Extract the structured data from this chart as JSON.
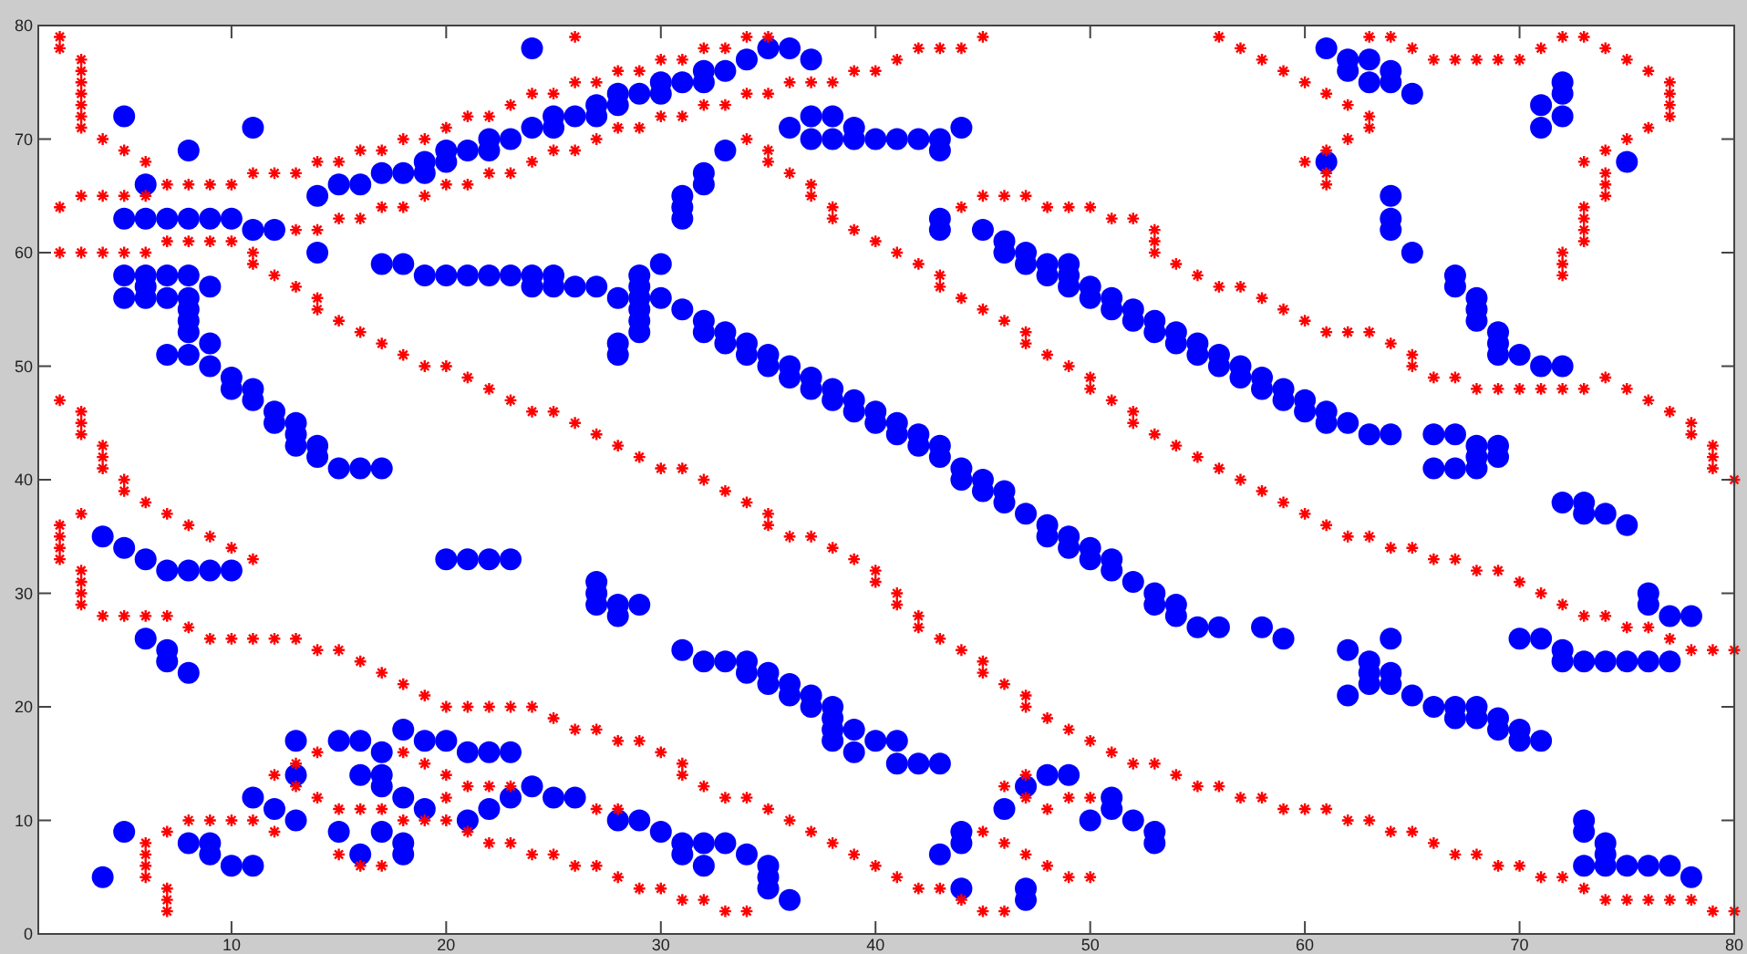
{
  "chart_data": {
    "type": "scatter",
    "xlim": [
      1,
      80
    ],
    "ylim": [
      0,
      80
    ],
    "xticks": [
      10,
      20,
      30,
      40,
      50,
      60,
      70,
      80
    ],
    "yticks": [
      0,
      10,
      20,
      30,
      40,
      50,
      60,
      70,
      80
    ],
    "grid": false,
    "series": [
      {
        "color": "#0000ff",
        "marker": "circle",
        "x": [
          4,
          4,
          5,
          5,
          5,
          5,
          5,
          5,
          6,
          6,
          6,
          6,
          6,
          6,
          6,
          7,
          7,
          7,
          7,
          7,
          7,
          7,
          8,
          8,
          8,
          8,
          8,
          8,
          8,
          8,
          8,
          8,
          8,
          9,
          9,
          9,
          9,
          9,
          9,
          9,
          10,
          10,
          10,
          10,
          10,
          11,
          11,
          11,
          11,
          11,
          11,
          12,
          12,
          12,
          12,
          13,
          13,
          13,
          13,
          13,
          13,
          14,
          14,
          14,
          14,
          15,
          15,
          15,
          15,
          16,
          16,
          16,
          16,
          16,
          17,
          17,
          17,
          17,
          17,
          17,
          17,
          18,
          18,
          18,
          18,
          18,
          18,
          19,
          19,
          19,
          19,
          19,
          20,
          20,
          20,
          20,
          20,
          21,
          21,
          21,
          21,
          21,
          22,
          22,
          22,
          22,
          22,
          22,
          23,
          23,
          23,
          23,
          23,
          24,
          24,
          24,
          24,
          24,
          25,
          25,
          25,
          25,
          25,
          26,
          26,
          26,
          27,
          27,
          27,
          27,
          27,
          27,
          28,
          28,
          28,
          28,
          28,
          28,
          28,
          28,
          29,
          29,
          29,
          29,
          29,
          29,
          29,
          29,
          29,
          30,
          30,
          30,
          30,
          30,
          31,
          31,
          31,
          31,
          31,
          31,
          31,
          31,
          32,
          32,
          32,
          32,
          32,
          32,
          32,
          32,
          32,
          33,
          33,
          33,
          33,
          33,
          33,
          34,
          34,
          34,
          34,
          34,
          34,
          35,
          35,
          35,
          35,
          35,
          35,
          35,
          35,
          36,
          36,
          36,
          36,
          36,
          36,
          36,
          37,
          37,
          37,
          37,
          37,
          37,
          37,
          38,
          38,
          38,
          38,
          38,
          38,
          38,
          38,
          39,
          39,
          39,
          39,
          39,
          39,
          40,
          40,
          40,
          40,
          41,
          41,
          41,
          41,
          41,
          42,
          42,
          42,
          42,
          43,
          43,
          43,
          43,
          43,
          43,
          43,
          43,
          44,
          44,
          44,
          44,
          44,
          44,
          45,
          45,
          45,
          46,
          46,
          46,
          46,
          46,
          47,
          47,
          47,
          47,
          47,
          47,
          48,
          48,
          48,
          48,
          48,
          49,
          49,
          49,
          49,
          49,
          49,
          50,
          50,
          50,
          50,
          50,
          51,
          51,
          51,
          51,
          51,
          51,
          52,
          52,
          52,
          52,
          53,
          53,
          53,
          53,
          53,
          53,
          54,
          54,
          54,
          54,
          55,
          55,
          55,
          56,
          56,
          56,
          57,
          57,
          58,
          58,
          58,
          59,
          59,
          59,
          60,
          60,
          61,
          61,
          61,
          61,
          62,
          62,
          62,
          62,
          62,
          63,
          63,
          63,
          63,
          63,
          63,
          64,
          64,
          64,
          64,
          64,
          64,
          64,
          64,
          64,
          65,
          65,
          65,
          66,
          66,
          66,
          67,
          67,
          67,
          67,
          67,
          67,
          68,
          68,
          68,
          68,
          68,
          68,
          68,
          68,
          69,
          69,
          69,
          69,
          69,
          69,
          69,
          70,
          70,
          70,
          70,
          71,
          71,
          71,
          71,
          71,
          72,
          72,
          72,
          72,
          72,
          72,
          72,
          73,
          73,
          73,
          73,
          73,
          73,
          74,
          74,
          74,
          74,
          74,
          75,
          75,
          75,
          75,
          76,
          76,
          76,
          76,
          77,
          77,
          77,
          78,
          78
        ],
        "values": [
          35,
          5,
          72,
          63,
          58,
          56,
          34,
          9,
          66,
          63,
          58,
          57,
          56,
          33,
          26,
          63,
          58,
          56,
          51,
          32,
          25,
          24,
          69,
          63,
          58,
          56,
          55,
          54,
          53,
          51,
          32,
          23,
          8,
          63,
          57,
          52,
          50,
          32,
          8,
          7,
          63,
          49,
          48,
          32,
          6,
          71,
          62,
          48,
          47,
          12,
          6,
          62,
          46,
          45,
          11,
          45,
          44,
          43,
          17,
          14,
          10,
          65,
          60,
          43,
          42,
          66,
          41,
          17,
          9,
          66,
          41,
          17,
          14,
          7,
          67,
          59,
          41,
          16,
          14,
          13,
          9,
          67,
          59,
          18,
          12,
          8,
          7,
          68,
          67,
          58,
          17,
          11,
          69,
          68,
          58,
          33,
          17,
          69,
          58,
          33,
          16,
          10,
          70,
          69,
          58,
          33,
          16,
          11,
          70,
          58,
          33,
          16,
          12,
          78,
          71,
          58,
          57,
          13,
          72,
          71,
          58,
          57,
          12,
          72,
          57,
          12,
          73,
          72,
          57,
          31,
          30,
          29,
          74,
          73,
          56,
          52,
          51,
          29,
          28,
          10,
          74,
          58,
          57,
          56,
          55,
          54,
          53,
          29,
          10,
          75,
          74,
          59,
          56,
          9,
          75,
          65,
          64,
          63,
          55,
          25,
          8,
          7,
          76,
          75,
          67,
          66,
          54,
          53,
          24,
          8,
          6,
          76,
          69,
          53,
          52,
          24,
          8,
          77,
          52,
          51,
          24,
          23,
          7,
          78,
          51,
          50,
          23,
          22,
          6,
          5,
          4,
          78,
          71,
          50,
          49,
          22,
          21,
          3,
          77,
          72,
          70,
          49,
          48,
          21,
          20,
          72,
          70,
          48,
          47,
          20,
          19,
          18,
          17,
          71,
          70,
          47,
          46,
          18,
          16,
          70,
          46,
          45,
          17,
          70,
          45,
          44,
          17,
          15,
          70,
          44,
          43,
          15,
          70,
          69,
          63,
          62,
          43,
          42,
          15,
          7,
          71,
          41,
          40,
          9,
          8,
          4,
          62,
          40,
          39,
          61,
          60,
          39,
          38,
          11,
          60,
          59,
          37,
          13,
          4,
          3,
          59,
          58,
          36,
          35,
          14,
          59,
          58,
          57,
          35,
          34,
          14,
          57,
          56,
          34,
          33,
          10,
          56,
          55,
          33,
          32,
          12,
          11,
          55,
          54,
          31,
          10,
          54,
          53,
          30,
          29,
          9,
          8,
          53,
          52,
          29,
          28,
          52,
          51,
          27,
          51,
          50,
          27,
          50,
          49,
          49,
          48,
          27,
          48,
          47,
          26,
          47,
          46,
          78,
          68,
          46,
          45,
          77,
          76,
          45,
          25,
          21,
          77,
          75,
          44,
          24,
          23,
          22,
          76,
          75,
          65,
          63,
          62,
          44,
          26,
          23,
          22,
          74,
          60,
          21,
          44,
          41,
          20,
          58,
          57,
          44,
          41,
          20,
          19,
          56,
          55,
          54,
          43,
          42,
          41,
          20,
          19,
          53,
          52,
          51,
          43,
          42,
          19,
          18,
          51,
          26,
          18,
          17,
          73,
          71,
          50,
          26,
          17,
          75,
          74,
          72,
          50,
          38,
          25,
          24,
          38,
          37,
          24,
          10,
          9,
          6,
          37,
          24,
          8,
          7,
          6,
          68,
          36,
          24,
          6,
          30,
          29,
          24,
          6,
          28,
          24,
          6,
          28,
          5
        ]
      },
      {
        "color": "#ff0000",
        "marker": "cross",
        "x": [
          2,
          2,
          2,
          2,
          2,
          2,
          2,
          2,
          2,
          3,
          3,
          3,
          3,
          3,
          3,
          3,
          3,
          3,
          3,
          3,
          3,
          3,
          3,
          3,
          3,
          3,
          4,
          4,
          4,
          4,
          4,
          4,
          4,
          5,
          5,
          5,
          5,
          5,
          5,
          6,
          6,
          6,
          6,
          6,
          6,
          6,
          6,
          6,
          7,
          7,
          7,
          7,
          7,
          7,
          7,
          7,
          8,
          8,
          8,
          8,
          8,
          9,
          9,
          9,
          9,
          9,
          10,
          10,
          10,
          10,
          10,
          11,
          11,
          11,
          11,
          11,
          11,
          12,
          12,
          12,
          12,
          12,
          13,
          13,
          13,
          13,
          13,
          13,
          14,
          14,
          14,
          14,
          14,
          14,
          14,
          15,
          15,
          15,
          15,
          15,
          15,
          16,
          16,
          16,
          16,
          16,
          16,
          17,
          17,
          17,
          17,
          17,
          17,
          18,
          18,
          18,
          18,
          18,
          18,
          19,
          19,
          19,
          19,
          19,
          19,
          20,
          20,
          20,
          20,
          20,
          20,
          20,
          21,
          21,
          21,
          21,
          21,
          21,
          22,
          22,
          22,
          22,
          22,
          22,
          23,
          23,
          23,
          23,
          23,
          23,
          24,
          24,
          24,
          24,
          24,
          25,
          25,
          25,
          25,
          25,
          26,
          26,
          26,
          26,
          26,
          26,
          27,
          27,
          27,
          27,
          27,
          27,
          28,
          28,
          28,
          28,
          28,
          28,
          29,
          29,
          29,
          29,
          29,
          30,
          30,
          30,
          30,
          30,
          31,
          31,
          31,
          31,
          31,
          31,
          32,
          32,
          32,
          32,
          32,
          33,
          33,
          33,
          33,
          33,
          34,
          34,
          34,
          34,
          34,
          34,
          35,
          35,
          35,
          35,
          35,
          35,
          35,
          36,
          36,
          36,
          36,
          37,
          37,
          37,
          37,
          37,
          38,
          38,
          38,
          38,
          38,
          39,
          39,
          39,
          39,
          40,
          40,
          40,
          40,
          40,
          41,
          41,
          41,
          41,
          41,
          42,
          42,
          42,
          42,
          42,
          43,
          43,
          43,
          43,
          43,
          44,
          44,
          44,
          44,
          44,
          45,
          45,
          45,
          45,
          45,
          45,
          45,
          46,
          46,
          46,
          46,
          46,
          46,
          47,
          47,
          47,
          47,
          47,
          47,
          47,
          47,
          48,
          48,
          48,
          48,
          48,
          49,
          49,
          49,
          49,
          49,
          50,
          50,
          50,
          50,
          50,
          50,
          51,
          51,
          51,
          52,
          52,
          52,
          52,
          53,
          53,
          53,
          53,
          53,
          54,
          54,
          54,
          55,
          55,
          55,
          56,
          56,
          56,
          56,
          57,
          57,
          57,
          57,
          58,
          58,
          58,
          58,
          59,
          59,
          59,
          59,
          60,
          60,
          60,
          60,
          60,
          61,
          61,
          61,
          61,
          61,
          61,
          61,
          62,
          62,
          62,
          62,
          62,
          63,
          63,
          63,
          63,
          63,
          63,
          64,
          64,
          64,
          64,
          65,
          65,
          65,
          65,
          65,
          66,
          66,
          66,
          66,
          67,
          67,
          67,
          67,
          68,
          68,
          68,
          68,
          69,
          69,
          69,
          69,
          70,
          70,
          70,
          70,
          71,
          71,
          71,
          71,
          72,
          72,
          72,
          72,
          72,
          72,
          72,
          73,
          73,
          73,
          73,
          73,
          73,
          73,
          73,
          73,
          74,
          74,
          74,
          74,
          74,
          74,
          74,
          74,
          75,
          75,
          75,
          75,
          75,
          76,
          76,
          76,
          76,
          76,
          77,
          77,
          77,
          77,
          77,
          77,
          77,
          78,
          78,
          78,
          78,
          79,
          79,
          79,
          79,
          79,
          80,
          80,
          80
        ],
        "values": [
          79,
          78,
          64,
          60,
          47,
          36,
          35,
          34,
          33,
          77,
          76,
          75,
          74,
          73,
          72,
          71,
          65,
          60,
          46,
          45,
          44,
          37,
          32,
          31,
          30,
          29,
          70,
          65,
          60,
          43,
          42,
          41,
          28,
          69,
          65,
          60,
          40,
          39,
          28,
          68,
          65,
          60,
          38,
          28,
          8,
          7,
          6,
          5,
          66,
          61,
          37,
          28,
          9,
          4,
          3,
          2,
          66,
          61,
          36,
          27,
          10,
          66,
          61,
          35,
          26,
          10,
          66,
          61,
          34,
          26,
          10,
          67,
          60,
          59,
          33,
          26,
          10,
          67,
          58,
          26,
          14,
          9,
          67,
          62,
          57,
          26,
          15,
          13,
          68,
          62,
          56,
          55,
          25,
          16,
          12,
          68,
          63,
          54,
          25,
          11,
          7,
          69,
          63,
          53,
          24,
          11,
          6,
          69,
          64,
          52,
          23,
          11,
          6,
          70,
          64,
          51,
          22,
          16,
          10,
          70,
          65,
          50,
          21,
          15,
          10,
          71,
          66,
          50,
          20,
          14,
          12,
          10,
          72,
          66,
          49,
          20,
          13,
          9,
          72,
          67,
          48,
          20,
          13,
          8,
          73,
          67,
          47,
          20,
          13,
          8,
          74,
          68,
          46,
          20,
          7,
          74,
          69,
          46,
          19,
          7,
          79,
          75,
          69,
          45,
          18,
          6,
          75,
          70,
          44,
          18,
          11,
          6,
          76,
          71,
          43,
          17,
          11,
          5,
          76,
          71,
          42,
          17,
          4,
          77,
          72,
          41,
          16,
          4,
          77,
          72,
          41,
          15,
          14,
          3,
          78,
          73,
          40,
          13,
          3,
          78,
          73,
          39,
          12,
          2,
          79,
          74,
          70,
          38,
          12,
          2,
          79,
          74,
          69,
          68,
          37,
          36,
          11,
          75,
          67,
          35,
          10,
          75,
          66,
          65,
          35,
          9,
          75,
          64,
          63,
          34,
          8,
          76,
          62,
          33,
          7,
          76,
          61,
          32,
          31,
          6,
          77,
          60,
          30,
          29,
          5,
          78,
          59,
          28,
          27,
          4,
          78,
          58,
          57,
          26,
          4,
          78,
          64,
          56,
          25,
          3,
          79,
          65,
          55,
          24,
          23,
          9,
          2,
          65,
          54,
          22,
          13,
          8,
          2,
          65,
          53,
          52,
          21,
          20,
          14,
          12,
          7,
          64,
          51,
          19,
          11,
          6,
          64,
          50,
          18,
          12,
          5,
          64,
          49,
          48,
          17,
          12,
          5,
          63,
          47,
          16,
          63,
          46,
          45,
          15,
          62,
          61,
          60,
          44,
          15,
          59,
          43,
          14,
          58,
          42,
          13,
          79,
          57,
          41,
          13,
          78,
          57,
          40,
          12,
          77,
          56,
          39,
          12,
          76,
          55,
          38,
          11,
          75,
          68,
          54,
          37,
          11,
          74,
          69,
          67,
          66,
          53,
          36,
          11,
          73,
          70,
          53,
          35,
          10,
          79,
          72,
          71,
          53,
          35,
          10,
          79,
          52,
          34,
          9,
          78,
          51,
          50,
          34,
          9,
          77,
          49,
          33,
          8,
          77,
          49,
          33,
          7,
          77,
          48,
          32,
          7,
          77,
          48,
          32,
          6,
          77,
          48,
          31,
          6,
          78,
          48,
          30,
          5,
          79,
          60,
          59,
          58,
          48,
          29,
          5,
          79,
          68,
          64,
          63,
          62,
          61,
          48,
          28,
          4,
          78,
          69,
          67,
          66,
          65,
          49,
          28,
          3,
          77,
          70,
          48,
          27,
          3,
          76,
          71,
          47,
          27,
          3,
          75,
          74,
          73,
          72,
          46,
          26,
          3,
          45,
          44,
          25,
          3,
          43,
          42,
          41,
          25,
          2,
          40,
          25,
          2
        ]
      }
    ]
  }
}
